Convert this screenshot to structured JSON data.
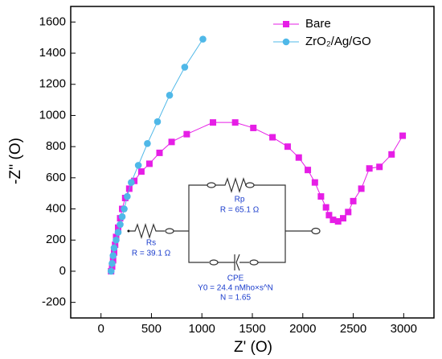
{
  "chart_data": {
    "type": "line",
    "xlabel": "Z' (O)",
    "ylabel": "-Z'' (O)",
    "xlim": [
      -300,
      3300
    ],
    "xticks": [
      0,
      500,
      1000,
      1500,
      2000,
      2500,
      3000
    ],
    "ylim": [
      -300,
      1700
    ],
    "yticks": [
      -200,
      0,
      200,
      400,
      600,
      800,
      1000,
      1200,
      1400,
      1600
    ],
    "legend": "top-right",
    "series": [
      {
        "name": "Bare",
        "color": "#e61ee6",
        "marker": "square",
        "x": [
          100,
          110,
          120,
          130,
          140,
          150,
          170,
          190,
          210,
          240,
          280,
          330,
          400,
          480,
          580,
          700,
          850,
          1110,
          1330,
          1510,
          1700,
          1850,
          1960,
          2050,
          2120,
          2180,
          2230,
          2260,
          2300,
          2350,
          2400,
          2450,
          2500,
          2580,
          2660,
          2760,
          2880,
          2990
        ],
        "values": [
          0,
          30,
          70,
          120,
          170,
          220,
          280,
          340,
          400,
          470,
          530,
          580,
          640,
          690,
          760,
          830,
          880,
          955,
          955,
          920,
          860,
          800,
          730,
          650,
          570,
          480,
          410,
          360,
          330,
          320,
          340,
          380,
          450,
          530,
          660,
          670,
          750,
          870
        ]
      },
      {
        "name": "ZrO₂/Ag/GO",
        "color": "#4fb8e8",
        "marker": "circle",
        "x": [
          100,
          110,
          120,
          130,
          150,
          170,
          190,
          210,
          230,
          260,
          300,
          370,
          460,
          560,
          680,
          830,
          1010
        ],
        "values": [
          0,
          50,
          100,
          150,
          200,
          250,
          300,
          350,
          400,
          480,
          570,
          680,
          820,
          960,
          1130,
          1310,
          1490
        ]
      }
    ],
    "circuit": {
      "rp": "Rp",
      "rp_value": "R = 65.1 Ω",
      "rs": "Rs",
      "rs_value": "R = 39.1 Ω",
      "cpe": "CPE",
      "cpe_y0": "Y0 = 24.4 nMho×s^N",
      "cpe_n": "N = 1.65"
    }
  }
}
